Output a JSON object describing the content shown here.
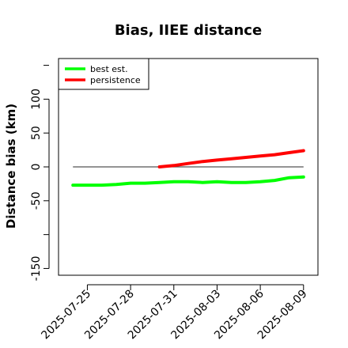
{
  "chart_data": {
    "type": "line",
    "title": "Bias, IIEE distance",
    "xlabel": "",
    "ylabel": "Distance bias (km)",
    "x_ticks": [
      "2025-07-25",
      "2025-07-28",
      "2025-07-31",
      "2025-08-03",
      "2025-08-06",
      "2025-08-09"
    ],
    "y_ticks": [
      -150,
      -50,
      0,
      50,
      100
    ],
    "ylim": [
      -160,
      160
    ],
    "xlim": [
      "2025-07-23",
      "2025-08-10"
    ],
    "reference_line": {
      "y": 0,
      "x_from": "2025-07-24",
      "x_to": "2025-08-09",
      "color": "#555555"
    },
    "legend": {
      "placement": "top-left"
    },
    "series": [
      {
        "name": "best est.",
        "color": "#00ff00",
        "x": [
          "2025-07-24",
          "2025-07-25",
          "2025-07-26",
          "2025-07-27",
          "2025-07-28",
          "2025-07-29",
          "2025-07-30",
          "2025-07-31",
          "2025-08-01",
          "2025-08-02",
          "2025-08-03",
          "2025-08-04",
          "2025-08-05",
          "2025-08-06",
          "2025-08-07",
          "2025-08-08",
          "2025-08-09"
        ],
        "values": [
          -27,
          -27,
          -27,
          -26,
          -24,
          -24,
          -23,
          -22,
          -22,
          -23,
          -22,
          -23,
          -23,
          -22,
          -20,
          -16,
          -15
        ]
      },
      {
        "name": "persistence",
        "color": "#ff0000",
        "x": [
          "2025-07-30",
          "2025-07-31",
          "2025-08-01",
          "2025-08-02",
          "2025-08-03",
          "2025-08-04",
          "2025-08-05",
          "2025-08-06",
          "2025-08-07",
          "2025-08-08",
          "2025-08-09"
        ],
        "values": [
          0,
          2,
          5,
          8,
          10,
          12,
          14,
          16,
          18,
          21,
          24
        ]
      }
    ]
  }
}
